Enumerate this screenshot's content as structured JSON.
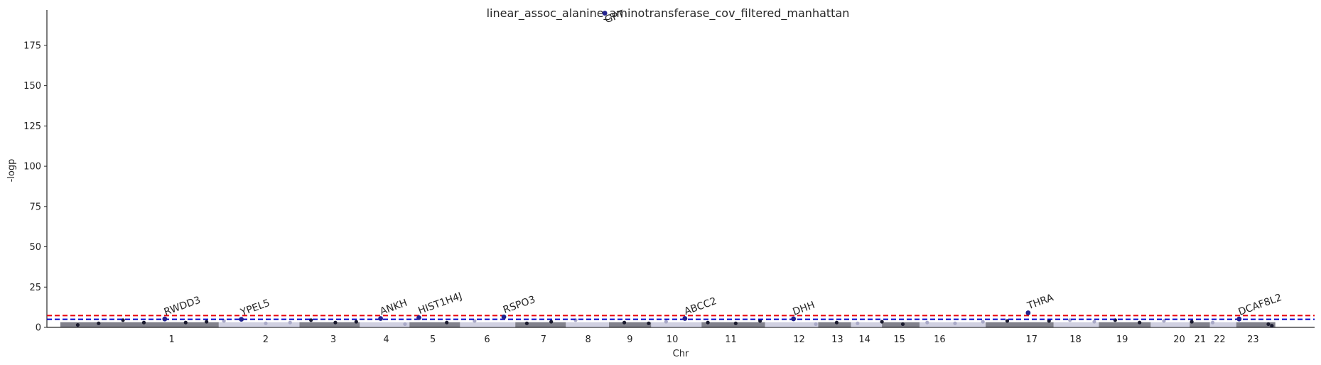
{
  "chart_data": {
    "type": "scatter",
    "title": "linear_assoc_alanine_aminotransferase_cov_filtered_manhattan",
    "xlabel": "Chr",
    "ylabel": "-logp",
    "ylim": [
      0,
      197
    ],
    "yticks": [
      0,
      25,
      50,
      75,
      100,
      125,
      150,
      175
    ],
    "grid": false,
    "chromosomes": [
      "1",
      "2",
      "3",
      "4",
      "5",
      "6",
      "7",
      "8",
      "9",
      "10",
      "11",
      "12",
      "13",
      "14",
      "15",
      "16",
      "17",
      "18",
      "19",
      "20",
      "21",
      "22",
      "23"
    ],
    "chromosome_tick_positions": [
      165,
      300,
      397,
      473,
      540,
      618,
      699,
      763,
      823,
      884,
      968,
      1066,
      1121,
      1160,
      1210,
      1268,
      1400,
      1463,
      1530,
      1612,
      1642,
      1670,
      1718
    ],
    "x_range": [
      0,
      1786
    ],
    "thresholds": [
      {
        "value": 7.3,
        "color": "#e8000b"
      },
      {
        "value": 5.0,
        "color": "#0000cc"
      }
    ],
    "colors": {
      "odd": "#1a1a2e",
      "even": "#a9a9c8",
      "highlight": "#23238e"
    },
    "annotations": [
      {
        "label": "RWDD3",
        "x": 155,
        "y": 5.2
      },
      {
        "label": "YPEL5",
        "x": 265,
        "y": 5.0
      },
      {
        "label": "ANKH",
        "x": 465,
        "y": 5.5
      },
      {
        "label": "HIST1H4J",
        "x": 520,
        "y": 6.0
      },
      {
        "label": "RSPO3",
        "x": 642,
        "y": 6.5
      },
      {
        "label": "GPT",
        "x": 787,
        "y": 195
      },
      {
        "label": "ABCC2",
        "x": 902,
        "y": 5.5
      },
      {
        "label": "DHH",
        "x": 1058,
        "y": 5.3
      },
      {
        "label": "THRA",
        "x": 1395,
        "y": 9.0
      },
      {
        "label": "DCAF8L2",
        "x": 1698,
        "y": 5.2
      }
    ],
    "points": [
      {
        "x": 30,
        "y": 1.5
      },
      {
        "x": 60,
        "y": 2.5
      },
      {
        "x": 95,
        "y": 4.5
      },
      {
        "x": 125,
        "y": 3.0
      },
      {
        "x": 155,
        "y": 5.2
      },
      {
        "x": 185,
        "y": 3.0
      },
      {
        "x": 215,
        "y": 3.5
      },
      {
        "x": 240,
        "y": 4.0
      },
      {
        "x": 265,
        "y": 5.0
      },
      {
        "x": 300,
        "y": 2.5
      },
      {
        "x": 335,
        "y": 3.0
      },
      {
        "x": 365,
        "y": 4.5
      },
      {
        "x": 400,
        "y": 3.0
      },
      {
        "x": 430,
        "y": 3.5
      },
      {
        "x": 465,
        "y": 5.5
      },
      {
        "x": 500,
        "y": 2.0
      },
      {
        "x": 520,
        "y": 6.0
      },
      {
        "x": 560,
        "y": 3.0
      },
      {
        "x": 600,
        "y": 4.0
      },
      {
        "x": 642,
        "y": 6.5
      },
      {
        "x": 675,
        "y": 2.5
      },
      {
        "x": 710,
        "y": 3.5
      },
      {
        "x": 745,
        "y": 4.5
      },
      {
        "x": 787,
        "y": 195
      },
      {
        "x": 815,
        "y": 3.0
      },
      {
        "x": 850,
        "y": 2.5
      },
      {
        "x": 875,
        "y": 3.5
      },
      {
        "x": 902,
        "y": 5.5
      },
      {
        "x": 935,
        "y": 3.0
      },
      {
        "x": 975,
        "y": 2.5
      },
      {
        "x": 1010,
        "y": 4.0
      },
      {
        "x": 1058,
        "y": 5.3
      },
      {
        "x": 1090,
        "y": 2.0
      },
      {
        "x": 1120,
        "y": 3.0
      },
      {
        "x": 1150,
        "y": 2.5
      },
      {
        "x": 1185,
        "y": 3.5
      },
      {
        "x": 1215,
        "y": 2.0
      },
      {
        "x": 1250,
        "y": 3.0
      },
      {
        "x": 1290,
        "y": 2.5
      },
      {
        "x": 1330,
        "y": 3.5
      },
      {
        "x": 1365,
        "y": 4.0
      },
      {
        "x": 1395,
        "y": 9.0
      },
      {
        "x": 1425,
        "y": 4.0
      },
      {
        "x": 1455,
        "y": 4.5
      },
      {
        "x": 1490,
        "y": 3.5
      },
      {
        "x": 1520,
        "y": 4.5
      },
      {
        "x": 1555,
        "y": 3.0
      },
      {
        "x": 1590,
        "y": 4.0
      },
      {
        "x": 1630,
        "y": 3.5
      },
      {
        "x": 1660,
        "y": 3.0
      },
      {
        "x": 1698,
        "y": 5.2
      },
      {
        "x": 1740,
        "y": 2.0
      },
      {
        "x": 1745,
        "y": 1.0
      }
    ]
  }
}
